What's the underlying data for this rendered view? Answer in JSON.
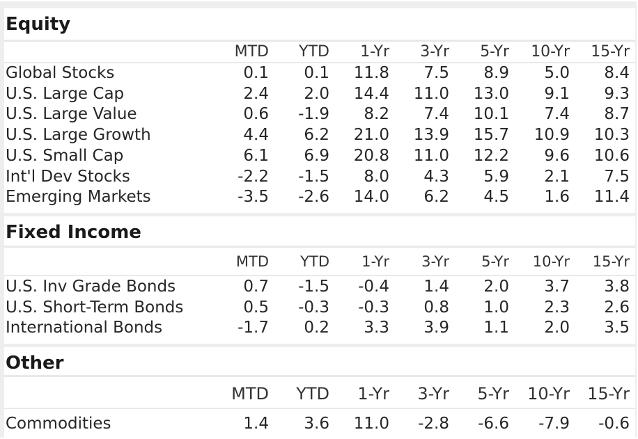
{
  "columns": [
    "MTD",
    "YTD",
    "1-Yr",
    "3-Yr",
    "5-Yr",
    "10-Yr",
    "15-Yr"
  ],
  "sections": [
    {
      "title": "Equity",
      "rows": [
        {
          "name": "Global Stocks",
          "values": [
            "0.1",
            "0.1",
            "11.8",
            "7.5",
            "8.9",
            "5.0",
            "8.4"
          ]
        },
        {
          "name": "U.S. Large Cap",
          "values": [
            "2.4",
            "2.0",
            "14.4",
            "11.0",
            "13.0",
            "9.1",
            "9.3"
          ]
        },
        {
          "name": "U.S. Large Value",
          "values": [
            "0.6",
            "-1.9",
            "8.2",
            "7.4",
            "10.1",
            "7.4",
            "8.7"
          ]
        },
        {
          "name": "U.S. Large Growth",
          "values": [
            "4.4",
            "6.2",
            "21.0",
            "13.9",
            "15.7",
            "10.9",
            "10.3"
          ]
        },
        {
          "name": "U.S. Small Cap",
          "values": [
            "6.1",
            "6.9",
            "20.8",
            "11.0",
            "12.2",
            "9.6",
            "10.6"
          ]
        },
        {
          "name": "Int'l Dev Stocks",
          "values": [
            "-2.2",
            "-1.5",
            "8.0",
            "4.3",
            "5.9",
            "2.1",
            "7.5"
          ]
        },
        {
          "name": "Emerging Markets",
          "values": [
            "-3.5",
            "-2.6",
            "14.0",
            "6.2",
            "4.5",
            "1.6",
            "11.4"
          ]
        }
      ]
    },
    {
      "title": "Fixed Income",
      "rows": [
        {
          "name": "U.S. Inv Grade Bonds",
          "values": [
            "0.7",
            "-1.5",
            "-0.4",
            "1.4",
            "2.0",
            "3.7",
            "3.8"
          ]
        },
        {
          "name": "U.S. Short-Term Bonds",
          "values": [
            "0.5",
            "-0.3",
            "-0.3",
            "0.8",
            "1.0",
            "2.3",
            "2.6"
          ]
        },
        {
          "name": "International Bonds",
          "values": [
            "-1.7",
            "0.2",
            "3.3",
            "3.9",
            "1.1",
            "2.0",
            "3.5"
          ]
        }
      ]
    },
    {
      "title": "Other",
      "rows": [
        {
          "name": "Commodities",
          "values": [
            "1.4",
            "3.6",
            "11.0",
            "-2.8",
            "-6.6",
            "-7.9",
            "-0.6"
          ]
        }
      ]
    }
  ]
}
